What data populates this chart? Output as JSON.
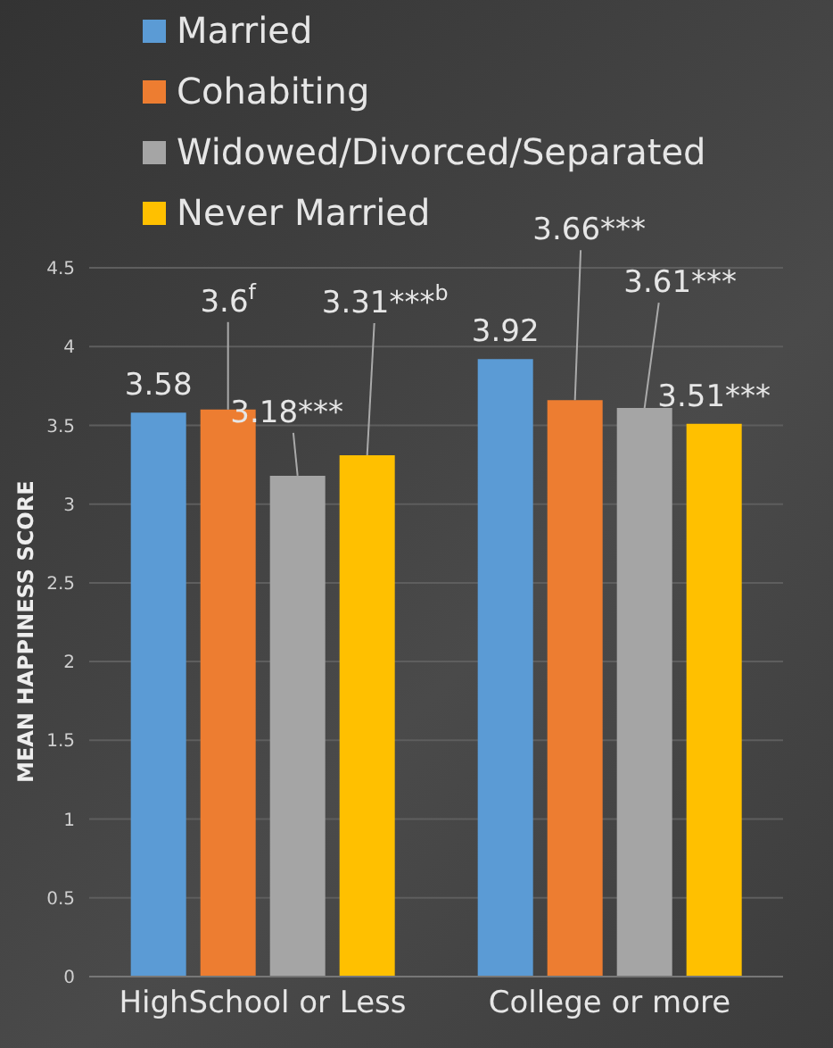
{
  "chart_data": {
    "type": "bar",
    "ylabel": "MEAN HAPPINESS SCORE",
    "categories": [
      "HighSchool or Less",
      "College or more"
    ],
    "series": [
      {
        "name": "Married",
        "color": "#5b9bd5",
        "values": [
          3.58,
          3.92
        ],
        "value_labels": [
          "3.58",
          "3.92"
        ]
      },
      {
        "name": "Cohabiting",
        "color": "#ed7d31",
        "values": [
          3.6,
          3.66
        ],
        "value_labels": [
          "3.6$^{f}$",
          "3.66***"
        ]
      },
      {
        "name": "Widowed/Divorced/Separated",
        "color": "#a5a5a5",
        "values": [
          3.18,
          3.61
        ],
        "value_labels": [
          "3.18***",
          "3.61***"
        ]
      },
      {
        "name": "Never Married",
        "color": "#ffc000",
        "values": [
          3.31,
          3.51
        ],
        "value_labels": [
          "3.31***$^{b}$",
          "3.51***"
        ]
      }
    ],
    "ylim": [
      0,
      4.5
    ],
    "yticks": [
      0,
      0.5,
      1,
      1.5,
      2,
      2.5,
      3,
      3.5,
      4,
      4.5
    ],
    "grid": "y",
    "legend": "top left"
  }
}
